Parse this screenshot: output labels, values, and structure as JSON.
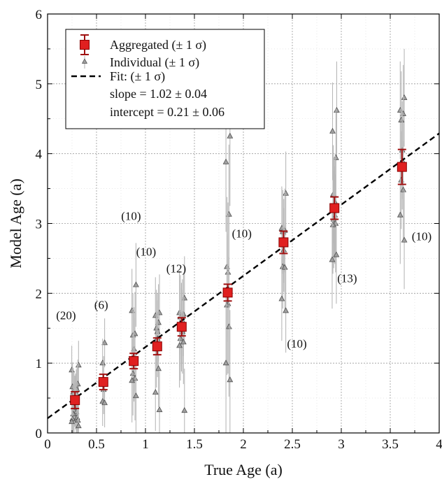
{
  "chart_data": {
    "type": "scatter",
    "title": "",
    "xlabel": "True Age (a)",
    "ylabel": "Model Age (a)",
    "xlim": [
      0,
      4
    ],
    "ylim": [
      0,
      6
    ],
    "xticks": [
      0,
      0.5,
      1,
      1.5,
      2,
      2.5,
      3,
      3.5,
      4
    ],
    "xtick_labels": [
      "0",
      "0.5",
      "1",
      "1.5",
      "2",
      "2.5",
      "3",
      "3.5",
      "4"
    ],
    "yticks": [
      0,
      1,
      2,
      3,
      4,
      5,
      6
    ],
    "ytick_labels": [
      "0",
      "1",
      "2",
      "3",
      "4",
      "5",
      "6"
    ],
    "grid": true,
    "legend_position": "top-left",
    "legend": {
      "aggregated": "Aggregated (± 1 σ)",
      "individual": "Individual (± 1 σ)",
      "fit": "Fit: (± 1 σ)",
      "slope": "slope = 1.02 ± 0.04",
      "intercept": "intercept = 0.21 ± 0.06"
    },
    "colors": {
      "aggregated": "#e02020",
      "individual": "#999999",
      "fit": "#000000",
      "grid": "#bbbbbb"
    },
    "fit": {
      "slope": 1.02,
      "intercept": 0.21
    },
    "aggregated": [
      {
        "x": 0.28,
        "y": 0.47,
        "err": 0.12,
        "label": "(20)"
      },
      {
        "x": 0.57,
        "y": 0.73,
        "err": 0.11,
        "label": "(6)"
      },
      {
        "x": 0.88,
        "y": 1.03,
        "err": 0.11,
        "label": "(10)"
      },
      {
        "x": 1.12,
        "y": 1.24,
        "err": 0.12,
        "label": "(10)"
      },
      {
        "x": 1.37,
        "y": 1.52,
        "err": 0.13,
        "label": "(12)"
      },
      {
        "x": 1.84,
        "y": 2.01,
        "err": 0.12,
        "label": "(10)"
      },
      {
        "x": 2.41,
        "y": 2.73,
        "err": 0.16,
        "label": "(10)"
      },
      {
        "x": 2.93,
        "y": 3.22,
        "err": 0.16,
        "label": "(13)"
      },
      {
        "x": 3.62,
        "y": 3.81,
        "err": 0.25,
        "label": "(10)"
      }
    ],
    "individual": [
      {
        "x": 0.28,
        "y": [
          0.97,
          0.9,
          0.7,
          0.66,
          0.62,
          0.58,
          0.56,
          0.52,
          0.5,
          0.47,
          0.44,
          0.4,
          0.36,
          0.3,
          0.27,
          0.22,
          0.2,
          0.18,
          0.16,
          0.1
        ],
        "err": 0.35
      },
      {
        "x": 0.57,
        "y": [
          1.29,
          1.0,
          0.75,
          0.62,
          0.45,
          0.43
        ],
        "err": 0.35
      },
      {
        "x": 0.88,
        "y": [
          2.12,
          1.75,
          1.42,
          1.4,
          1.2,
          1.05,
          0.85,
          0.78,
          0.75,
          0.53
        ],
        "err": 0.6
      },
      {
        "x": 1.12,
        "y": [
          1.72,
          1.68,
          1.58,
          1.5,
          1.45,
          1.35,
          1.2,
          0.92,
          0.58,
          0.33
        ],
        "err": 0.55
      },
      {
        "x": 1.37,
        "y": [
          1.93,
          1.72,
          1.7,
          1.66,
          1.6,
          1.55,
          1.48,
          1.45,
          1.35,
          1.3,
          1.25,
          0.32
        ],
        "err": 0.6
      },
      {
        "x": 1.84,
        "y": [
          4.25,
          3.88,
          3.13,
          2.38,
          2.3,
          1.85,
          1.83,
          1.52,
          1.0,
          0.76
        ],
        "err": 1.0
      },
      {
        "x": 2.41,
        "y": [
          3.43,
          2.93,
          2.9,
          2.88,
          2.75,
          2.62,
          2.38,
          2.37,
          1.92,
          1.75
        ],
        "err": 0.6
      },
      {
        "x": 2.93,
        "y": [
          4.62,
          4.32,
          3.94,
          3.42,
          3.3,
          3.25,
          3.2,
          3.12,
          3.06,
          3.0,
          2.98,
          2.55,
          2.48
        ],
        "err": 0.7
      },
      {
        "x": 3.62,
        "y": [
          4.8,
          4.62,
          4.57,
          4.48,
          4.05,
          3.9,
          3.62,
          3.48,
          3.12,
          2.76
        ],
        "err": 0.7
      }
    ]
  }
}
